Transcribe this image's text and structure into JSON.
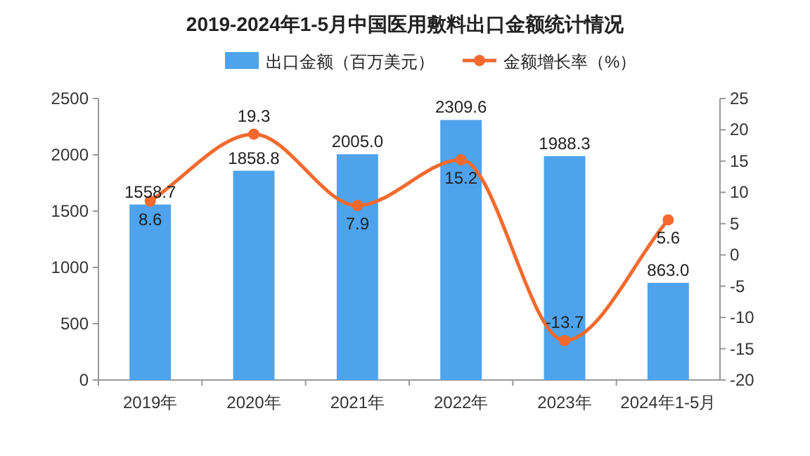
{
  "chart_data": {
    "type": "bar",
    "title": "2019-2024年1-5月中国医用敷料出口金额统计情况",
    "categories": [
      "2019年",
      "2020年",
      "2021年",
      "2022年",
      "2023年",
      "2024年1-5月"
    ],
    "series": [
      {
        "name": "出口金额（百万美元）",
        "color": "#4ea3ec",
        "values": [
          1558.7,
          1858.8,
          2005.0,
          2309.6,
          1988.3,
          863.0
        ],
        "value_labels": [
          "1558.7",
          "1858.8",
          "2005.0",
          "2309.6",
          "1988.3",
          "863.0"
        ]
      },
      {
        "name": "金额增长率（%）",
        "type": "line",
        "axis": "y2",
        "color": "#f26a2e",
        "marker": "circle",
        "values": [
          8.6,
          19.3,
          7.9,
          15.2,
          -13.7,
          5.6
        ],
        "value_labels": [
          "8.6",
          "19.3",
          "7.9",
          "15.2",
          "-13.7",
          "5.6"
        ]
      }
    ],
    "ylim": [
      0,
      2500
    ],
    "yticks": [
      0,
      500,
      1000,
      1500,
      2000,
      2500
    ],
    "y2lim": [
      -20,
      25
    ],
    "y2ticks": [
      -20,
      -15,
      -10,
      -5,
      0,
      5,
      10,
      15,
      20,
      25
    ],
    "legend": "top"
  }
}
